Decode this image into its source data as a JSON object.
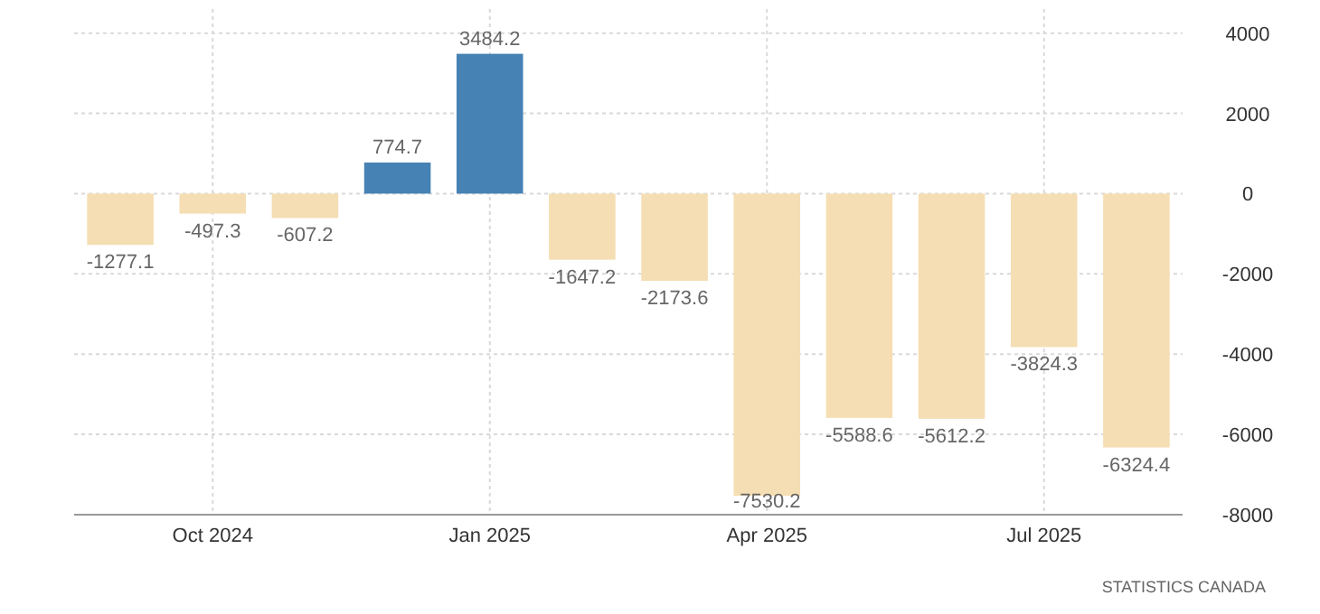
{
  "chart_data": {
    "type": "bar",
    "categories": [
      null,
      "Oct 2024",
      null,
      null,
      "Jan 2025",
      null,
      null,
      "Apr 2025",
      null,
      null,
      "Jul 2025",
      null
    ],
    "values": [
      -1277.1,
      -497.3,
      -607.2,
      774.7,
      3484.2,
      -1647.2,
      -2173.6,
      -7530.2,
      -5588.6,
      -5612.2,
      -3824.3,
      -6324.4
    ],
    "colors": [
      "#f5deb3",
      "#f5deb3",
      "#f5deb3",
      "#4682b4",
      "#4682b4",
      "#f5deb3",
      "#f5deb3",
      "#f5deb3",
      "#f5deb3",
      "#f5deb3",
      "#f5deb3",
      "#f5deb3"
    ],
    "ylim": [
      -8000,
      4600
    ],
    "yticks": [
      -8000,
      -6000,
      -4000,
      -2000,
      0,
      2000,
      4000
    ],
    "grid": true,
    "data_labels": true,
    "annotations": [
      "STATISTICS CANADA"
    ]
  }
}
